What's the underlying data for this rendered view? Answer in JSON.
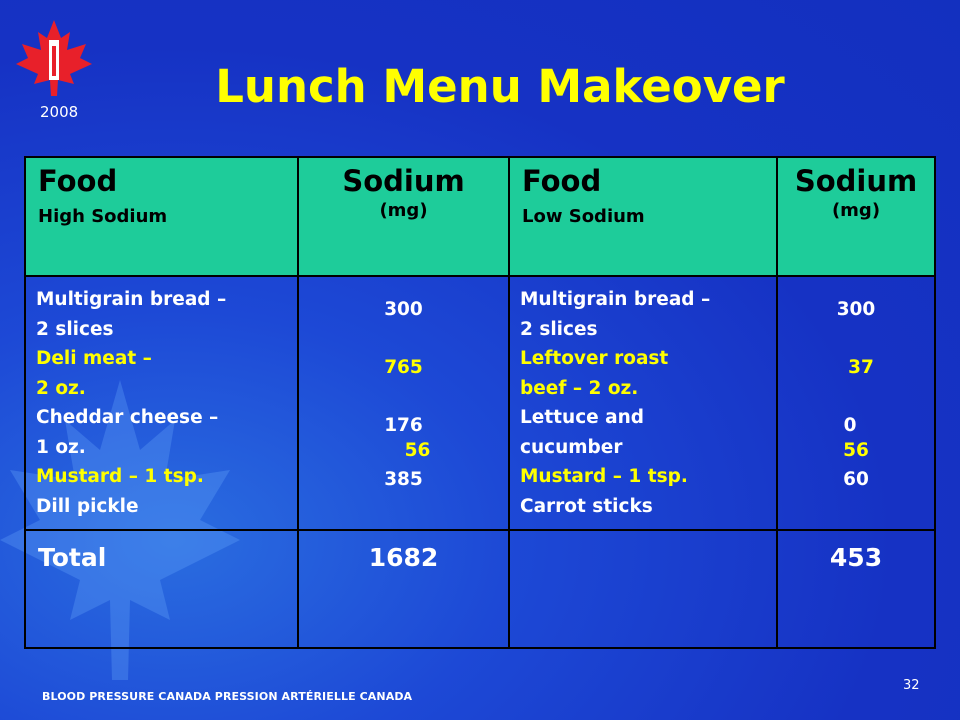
{
  "header": {
    "title": "Lunch Menu Makeover",
    "year": "2008"
  },
  "table": {
    "headers": [
      {
        "title": "Food",
        "subtitle": "High Sodium"
      },
      {
        "title": "Sodium",
        "subtitle": "(mg)"
      },
      {
        "title": "Food",
        "subtitle": "Low Sodium"
      },
      {
        "title": "Sodium",
        "subtitle": "(mg)"
      }
    ],
    "high_sodium_items": [
      {
        "text": "Multigrain bread –",
        "color": "white"
      },
      {
        "text": "2 slices",
        "color": "white"
      },
      {
        "text": "Deli meat –",
        "color": "yellow"
      },
      {
        "text": "2 oz.",
        "color": "yellow"
      },
      {
        "text": "Cheddar cheese –",
        "color": "white"
      },
      {
        "text": "1 oz.",
        "color": "white"
      },
      {
        "text": "Mustard – 1 tsp.",
        "color": "yellow"
      },
      {
        "text": "Dill pickle",
        "color": "white"
      }
    ],
    "high_sodium_values": [
      "300",
      "765",
      "176",
      "56",
      "385"
    ],
    "low_sodium_items": [
      {
        "text": "Multigrain bread –",
        "color": "white"
      },
      {
        "text": "2 slices",
        "color": "white"
      },
      {
        "text": "Leftover roast",
        "color": "yellow"
      },
      {
        "text": "beef – 2 oz.",
        "color": "yellow"
      },
      {
        "text": "Lettuce and",
        "color": "white"
      },
      {
        "text": "cucumber",
        "color": "white"
      },
      {
        "text": "Mustard – 1 tsp.",
        "color": "yellow"
      },
      {
        "text": "Carrot sticks",
        "color": "white"
      }
    ],
    "low_sodium_values": [
      "300",
      "37",
      "0",
      "56",
      "60"
    ],
    "total_label": "Total",
    "total_high": "1682",
    "total_low": "453"
  },
  "footer": {
    "organization": "BLOOD PRESSURE CANADA  PRESSION ARTÉRIELLE CANADA",
    "page_number": "32"
  },
  "colors": {
    "background": "#1a33c9",
    "header_fill": "#1ecc9a",
    "accent_text": "#ffff00"
  }
}
